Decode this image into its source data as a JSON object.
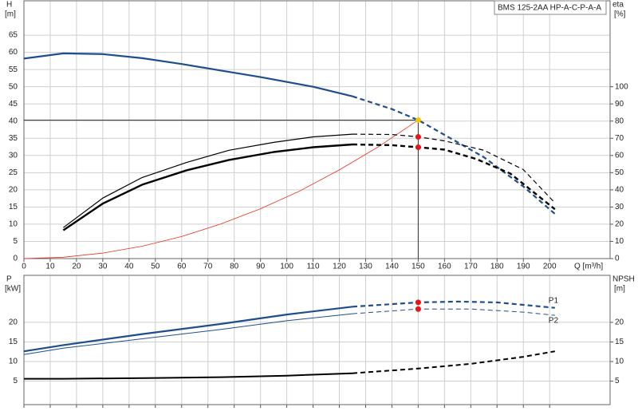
{
  "chart_data": [
    {
      "type": "line",
      "title": "BMS 125-2AA HP-A-C-P-A-A",
      "xlabel": "Q [m³/h]",
      "ylabel": "H",
      "yunit": "[m]",
      "y2label": "eta",
      "y2unit": "[%]",
      "xlim": [
        0,
        223
      ],
      "xticks": [
        0,
        10,
        20,
        30,
        40,
        50,
        60,
        70,
        80,
        90,
        100,
        110,
        120,
        130,
        140,
        150,
        160,
        170,
        180,
        190,
        200
      ],
      "ylim": [
        0,
        75
      ],
      "yticks": [
        0,
        5,
        10,
        15,
        20,
        25,
        30,
        35,
        40,
        45,
        50,
        55,
        60,
        65
      ],
      "y2lim": [
        0,
        150
      ],
      "y2ticks": [
        0,
        10,
        20,
        30,
        40,
        50,
        60,
        70,
        80,
        90,
        100
      ],
      "grid": true,
      "series": [
        {
          "color": "#1f4e8c",
          "width": 2.2,
          "axis": "y",
          "dash_from": 125,
          "marker_at": 150,
          "marker_color": "#f5c400",
          "guides": true,
          "x": [
            0,
            15,
            30,
            45,
            60,
            75,
            90,
            110,
            125,
            140,
            150,
            160,
            175,
            190,
            202
          ],
          "values": [
            58.2,
            59.7,
            59.5,
            58.3,
            56.6,
            54.7,
            52.8,
            50,
            47.2,
            43.5,
            40.3,
            36,
            29.5,
            21,
            13
          ]
        },
        {
          "color": "#e8321e",
          "width": 0.8,
          "axis": "y",
          "x": [
            0,
            15,
            30,
            45,
            60,
            75,
            90,
            105,
            120,
            135,
            150
          ],
          "values": [
            0,
            0.4,
            1.6,
            3.6,
            6.4,
            10.1,
            14.5,
            19.7,
            25.8,
            32.6,
            40.3
          ]
        },
        {
          "color": "#000000",
          "width": 1.2,
          "axis": "y2",
          "dash_from": 125,
          "marker_at": 150,
          "marker_color": "#e8141e",
          "x": [
            15,
            30,
            45,
            62,
            78,
            95,
            110,
            125,
            140,
            150,
            160,
            175,
            190,
            202
          ],
          "values": [
            18,
            35.2,
            47.2,
            56,
            63,
            67.6,
            70.8,
            72.4,
            72.2,
            70.8,
            68.5,
            63,
            51.8,
            32.4
          ]
        },
        {
          "color": "#000000",
          "width": 2.4,
          "axis": "y2",
          "dash_from": 125,
          "marker_at": 150,
          "marker_color": "#e8141e",
          "x": [
            15,
            30,
            45,
            62,
            78,
            95,
            110,
            125,
            140,
            150,
            160,
            172,
            185,
            202
          ],
          "values": [
            16.5,
            32,
            43,
            51.4,
            57.4,
            62,
            64.8,
            66.4,
            66,
            64.8,
            63.4,
            58,
            49.5,
            28.7
          ]
        }
      ]
    },
    {
      "type": "line",
      "ylabel": "P",
      "yunit": "[kW]",
      "y2label": "NPSH",
      "y2unit": "[m]",
      "ylim": [
        -1,
        32
      ],
      "yticks": [
        5,
        10,
        15,
        20
      ],
      "y2lim": [
        -1,
        32
      ],
      "y2ticks": [
        5,
        10,
        15,
        20
      ],
      "grid": true,
      "series": [
        {
          "name": "P1",
          "color": "#1f4e8c",
          "width": 2.2,
          "axis": "y",
          "dash_from": 125,
          "marker_at": 150,
          "marker_color": "#e8141e",
          "x": [
            0,
            15,
            45,
            75,
            100,
            125,
            150,
            165,
            180,
            202
          ],
          "values": [
            12.6,
            14.2,
            17,
            19.6,
            22,
            24,
            25.1,
            25.3,
            25.1,
            23.7
          ]
        },
        {
          "name": "P2",
          "color": "#1f4e8c",
          "width": 1,
          "axis": "y",
          "dash_from": 125,
          "marker_at": 150,
          "marker_color": "#e8141e",
          "x": [
            0,
            15,
            45,
            75,
            100,
            125,
            150,
            170,
            190,
            202
          ],
          "values": [
            11.8,
            13.4,
            15.8,
            18.2,
            20.4,
            22.2,
            23.4,
            23.4,
            22.6,
            21.8
          ]
        },
        {
          "color": "#000000",
          "width": 2,
          "axis": "y2",
          "dash_from": 125,
          "x": [
            0,
            15,
            50,
            75,
            100,
            125,
            150,
            170,
            190,
            202
          ],
          "values": [
            5.6,
            5.6,
            5.8,
            6,
            6.4,
            7,
            8.2,
            9.4,
            11.2,
            12.6
          ]
        }
      ]
    }
  ]
}
